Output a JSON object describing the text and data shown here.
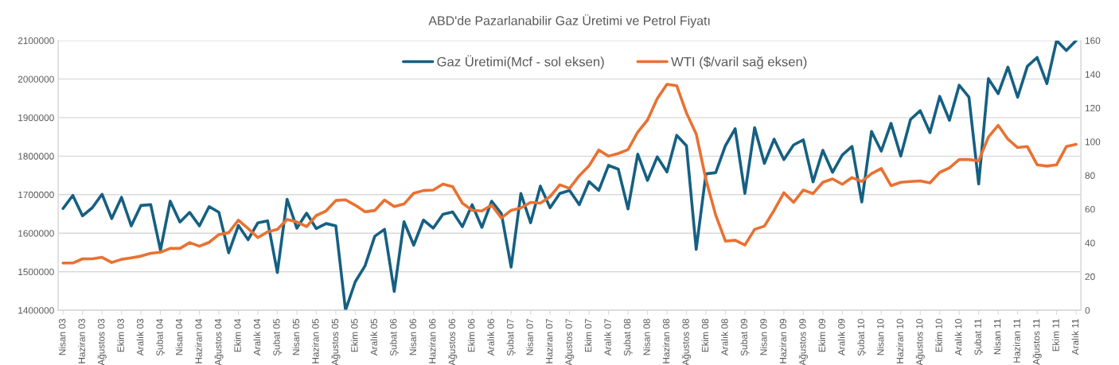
{
  "chart_data": {
    "type": "line",
    "title": "ABD'de Pazarlanabilir Gaz Üretimi ve Petrol Fiyatı",
    "categories": [
      "Nisan 03",
      null,
      "Haziran 03",
      null,
      "Ağustos 03",
      null,
      "Ekim 03",
      null,
      "Aralık 03",
      null,
      "Şubat 04",
      null,
      "Nisan 04",
      null,
      "Haziran 04",
      null,
      "Ağustos 04",
      null,
      "Ekim 04",
      null,
      "Aralık 04",
      null,
      "Şubat 05",
      null,
      "Nisan 05",
      null,
      "Haziran 05",
      null,
      "Ağustos 05",
      null,
      "Ekim 05",
      null,
      "Aralık 05",
      null,
      "Şubat 06",
      null,
      "Nisan 06",
      null,
      "Haziran 06",
      null,
      "Ağustos 06",
      null,
      "Ekim 06",
      null,
      "Aralık 06",
      null,
      "Şubat 07",
      null,
      "Nisan 07",
      null,
      "Haziran 07",
      null,
      "Ağustos 07",
      null,
      "Ekim 07",
      null,
      "Aralık 07",
      null,
      "Şubat 08",
      null,
      "Nisan 08",
      null,
      "Haziran 08",
      null,
      "Ağustos 08",
      null,
      "Ekim 08",
      null,
      "Aralık 08",
      null,
      "Şubat 09",
      null,
      "Nisan 09",
      null,
      "Haziran 09",
      null,
      "Ağustos 09",
      null,
      "Ekim 09",
      null,
      "Aralık 09",
      null,
      "Şubat 10",
      null,
      "Nisan 10",
      null,
      "Haziran 10",
      null,
      "Ağustos 10",
      null,
      "Ekim 10",
      null,
      "Aralık 10",
      null,
      "Şubat 11",
      null,
      "Nisan 11",
      null,
      "Haziran 11",
      null,
      "Ağustos 11",
      null,
      "Ekim 11",
      null,
      "Aralık 11"
    ],
    "series": [
      {
        "name": "Gaz Üretimi(Mcf - sol eksen)",
        "color": "#156082",
        "values": [
          1664000,
          1698000,
          1645000,
          1666000,
          1701000,
          1638000,
          1693000,
          1619000,
          1672000,
          1674000,
          1556000,
          1683000,
          1629000,
          1654000,
          1619000,
          1669000,
          1654000,
          1549000,
          1620000,
          1583000,
          1627000,
          1632000,
          1498000,
          1688000,
          1613000,
          1652000,
          1612000,
          1625000,
          1619000,
          1400000,
          1474000,
          1515000,
          1592000,
          1610000,
          1449000,
          1630000,
          1569000,
          1634000,
          1613000,
          1649000,
          1655000,
          1617000,
          1674000,
          1615000,
          1683000,
          1651000,
          1512000,
          1703000,
          1627000,
          1722000,
          1666000,
          1703000,
          1711000,
          1674000,
          1734000,
          1711000,
          1776000,
          1766000,
          1663000,
          1805000,
          1737000,
          1798000,
          1759000,
          1854000,
          1827000,
          1558000,
          1754000,
          1757000,
          1827000,
          1871000,
          1703000,
          1874000,
          1781000,
          1844000,
          1791000,
          1829000,
          1842000,
          1733000,
          1815000,
          1758000,
          1803000,
          1825000,
          1681000,
          1864000,
          1813000,
          1885000,
          1800000,
          1895000,
          1918000,
          1861000,
          1955000,
          1893000,
          1984000,
          1953000,
          1728000,
          2001000,
          1962000,
          2031000,
          1953000,
          2033000,
          2056000,
          1988000,
          2100000,
          2074000,
          2100000
        ]
      },
      {
        "name": "WTI ($/varil sağ eksen)",
        "color": "#e97132",
        "axis": "y2",
        "values": [
          28,
          28,
          30.5,
          30.5,
          31.4,
          28.3,
          30.2,
          31.1,
          32.1,
          33.8,
          34.4,
          36.7,
          36.7,
          40.1,
          38,
          40.3,
          44.9,
          46,
          53.4,
          48.5,
          43.1,
          46.5,
          48,
          53.9,
          52.4,
          49.6,
          56.2,
          58.9,
          65.1,
          65.5,
          62.3,
          58.4,
          59.2,
          65.4,
          61.5,
          63,
          69.4,
          71,
          71.3,
          74.8,
          73.3,
          63.5,
          59.3,
          58.9,
          62.4,
          54.7,
          59.3,
          60.7,
          64,
          63.5,
          67.4,
          74.4,
          72.3,
          79.8,
          85.7,
          95,
          91.4,
          93,
          95.3,
          105.7,
          112.8,
          125.5,
          134,
          133.2,
          117,
          104.6,
          77.5,
          56.5,
          41,
          41.5,
          38.7,
          48,
          49.9,
          59.3,
          69.7,
          64,
          71.3,
          69.2,
          75.9,
          77.9,
          74.7,
          78.7,
          76.4,
          81,
          84.1,
          73.9,
          75.9,
          76.4,
          76.7,
          75.5,
          81.8,
          84.4,
          89.4,
          89.4,
          88.6,
          102.7,
          109.7,
          101.5,
          96.5,
          97.1,
          86.3,
          85.5,
          86.3,
          97.1,
          98.4
        ]
      }
    ],
    "ylim": [
      1400000,
      2100000
    ],
    "yticks": [
      1400000,
      1500000,
      1600000,
      1700000,
      1800000,
      1900000,
      2000000,
      2100000
    ],
    "y2lim": [
      0,
      160
    ],
    "y2ticks": [
      0,
      20,
      40,
      60,
      80,
      100,
      120,
      140,
      160
    ],
    "grid": "y",
    "legend": "top",
    "marker": "none",
    "line_style": "solid"
  }
}
